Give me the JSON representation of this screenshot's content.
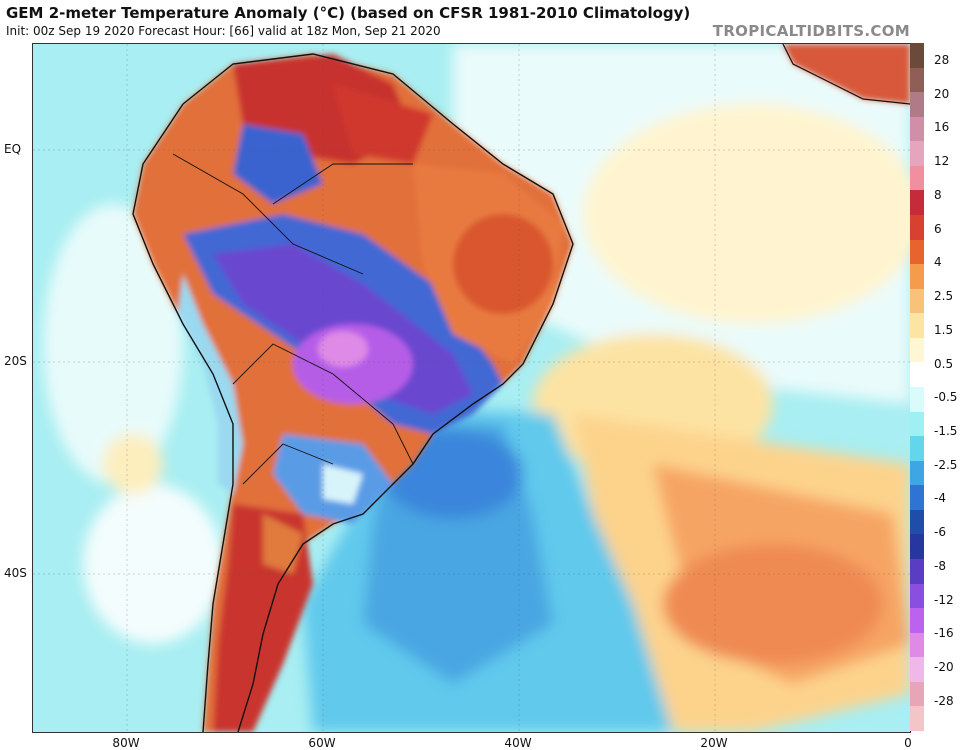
{
  "header": {
    "title": "GEM 2-meter Temperature Anomaly (°C) (based on CFSR 1981-2010 Climatology)",
    "subtitle": "Init: 00z Sep 19 2020   Forecast Hour: [66]   valid at 18z Mon, Sep 21 2020",
    "watermark": "TROPICALTIDBITS.COM"
  },
  "axes": {
    "lat_labels": [
      "EQ",
      "20S",
      "40S"
    ],
    "lon_labels": [
      "80W",
      "60W",
      "40W",
      "20W",
      "0"
    ]
  },
  "legend": {
    "ticks": [
      "28",
      "20",
      "16",
      "12",
      "8",
      "6",
      "4",
      "2.5",
      "1.5",
      "0.5",
      "-0.5",
      "-1.5",
      "-2.5",
      "-4",
      "-6",
      "-8",
      "-12",
      "-16",
      "-20",
      "-28"
    ],
    "colors": [
      "#6b4a3a",
      "#8f5e57",
      "#b07a86",
      "#d08ea8",
      "#e6a4bd",
      "#f08fa0",
      "#c52b38",
      "#d8402f",
      "#e8642e",
      "#f49b4c",
      "#f8c27a",
      "#fce5a3",
      "#fff7d4",
      "#ffffff",
      "#d9fbfb",
      "#9ff0f2",
      "#63d6ec",
      "#3fa6e4",
      "#2e74d2",
      "#1f4ea8",
      "#2836a0",
      "#5a3dc2",
      "#8a4ee0",
      "#bb63ee",
      "#de8ae6",
      "#f0b8e9",
      "#e8a5b8",
      "#f3c4c8"
    ]
  },
  "map": {
    "region": "South America & South Atlantic"
  }
}
